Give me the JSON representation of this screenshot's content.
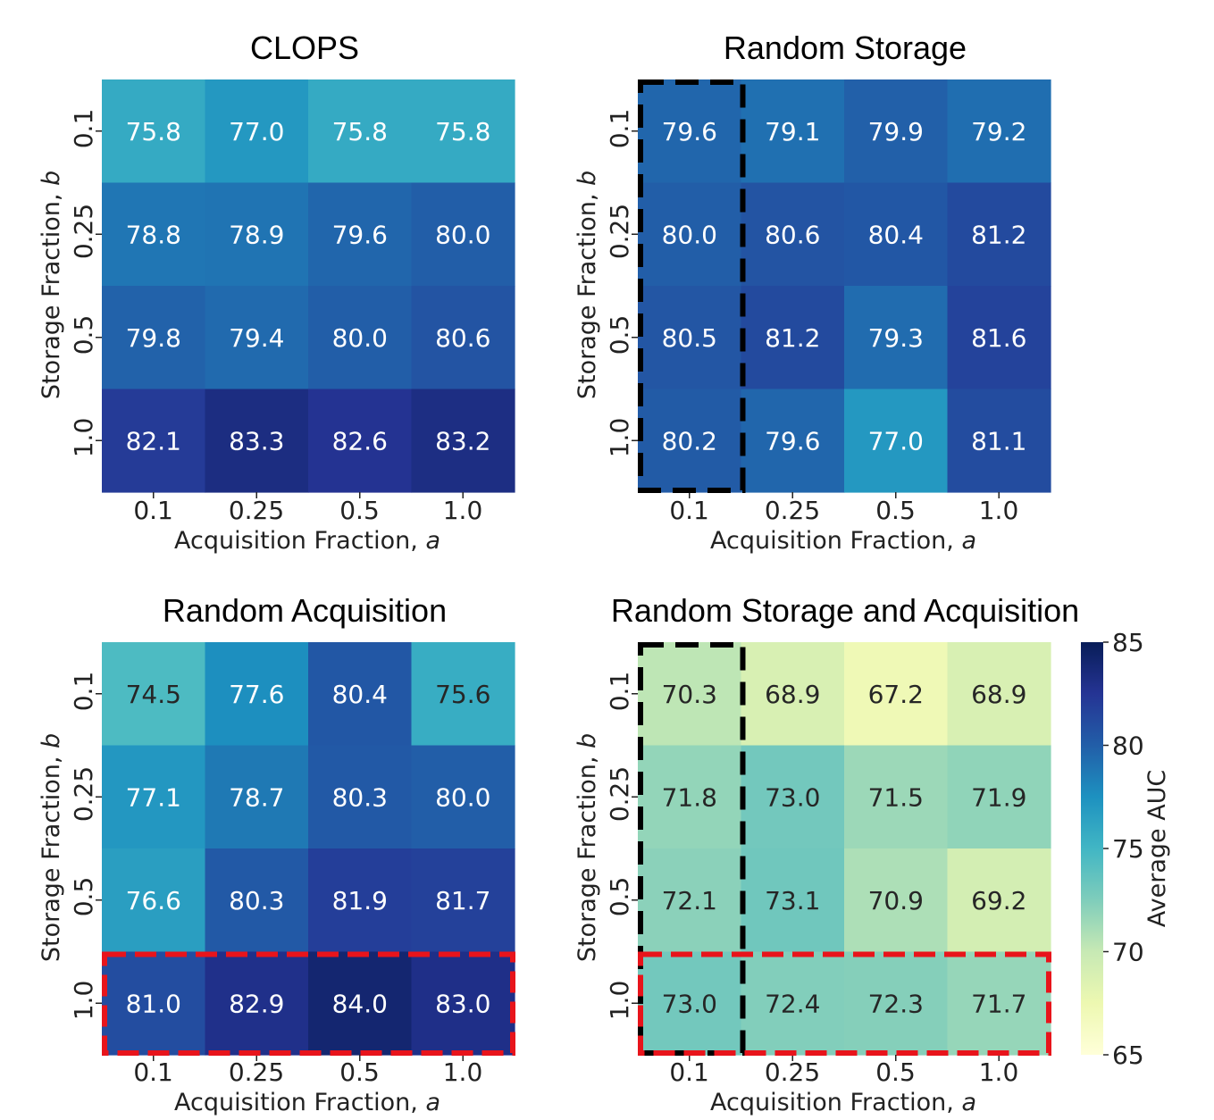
{
  "chart_data": [
    {
      "type": "heatmap",
      "title": "CLOPS",
      "xlabel": "Acquisition Fraction,",
      "xlabel_var": "a",
      "ylabel": "Storage Fraction,",
      "ylabel_var": "b",
      "x_ticks": [
        "0.1",
        "0.25",
        "0.5",
        "1.0"
      ],
      "y_ticks": [
        "0.1",
        "0.25",
        "0.5",
        "1.0"
      ],
      "values": [
        [
          75.8,
          77.0,
          75.8,
          75.8
        ],
        [
          78.8,
          78.9,
          79.6,
          80.0
        ],
        [
          79.8,
          79.4,
          80.0,
          80.6
        ],
        [
          82.1,
          83.3,
          82.6,
          83.2
        ]
      ],
      "highlight_col": null,
      "highlight_row": null
    },
    {
      "type": "heatmap",
      "title": "Random Storage",
      "xlabel": "Acquisition Fraction,",
      "xlabel_var": "a",
      "ylabel": "Storage Fraction,",
      "ylabel_var": "b",
      "x_ticks": [
        "0.1",
        "0.25",
        "0.5",
        "1.0"
      ],
      "y_ticks": [
        "0.1",
        "0.25",
        "0.5",
        "1.0"
      ],
      "values": [
        [
          79.6,
          79.1,
          79.9,
          79.2
        ],
        [
          80.0,
          80.6,
          80.4,
          81.2
        ],
        [
          80.5,
          81.2,
          79.3,
          81.6
        ],
        [
          80.2,
          79.6,
          77.0,
          81.1
        ]
      ],
      "highlight_col": 0,
      "highlight_row": null
    },
    {
      "type": "heatmap",
      "title": "Random Acquisition",
      "xlabel": "Acquisition Fraction,",
      "xlabel_var": "a",
      "ylabel": "Storage Fraction,",
      "ylabel_var": "b",
      "x_ticks": [
        "0.1",
        "0.25",
        "0.5",
        "1.0"
      ],
      "y_ticks": [
        "0.1",
        "0.25",
        "0.5",
        "1.0"
      ],
      "values": [
        [
          74.5,
          77.6,
          80.4,
          75.6
        ],
        [
          77.1,
          78.7,
          80.3,
          80.0
        ],
        [
          76.6,
          80.3,
          81.9,
          81.7
        ],
        [
          81.0,
          82.9,
          84.0,
          83.0
        ]
      ],
      "highlight_col": null,
      "highlight_row": 3
    },
    {
      "type": "heatmap",
      "title": "Random Storage and Acquisition",
      "xlabel": "Acquisition Fraction,",
      "xlabel_var": "a",
      "ylabel": "Storage Fraction,",
      "ylabel_var": "b",
      "x_ticks": [
        "0.1",
        "0.25",
        "0.5",
        "1.0"
      ],
      "y_ticks": [
        "0.1",
        "0.25",
        "0.5",
        "1.0"
      ],
      "values": [
        [
          70.3,
          68.9,
          67.2,
          68.9
        ],
        [
          71.8,
          73.0,
          71.5,
          71.9
        ],
        [
          72.1,
          73.1,
          70.9,
          69.2
        ],
        [
          73.0,
          72.4,
          72.3,
          71.7
        ]
      ],
      "highlight_col": 0,
      "highlight_row": 3
    }
  ],
  "colorbar": {
    "label": "Average AUC",
    "min": 65,
    "max": 85,
    "ticks": [
      "65",
      "70",
      "75",
      "80",
      "85"
    ],
    "colormap": "YlGnBu"
  },
  "highlight_colors": {
    "column": "#000000",
    "row": "#e8141b"
  }
}
